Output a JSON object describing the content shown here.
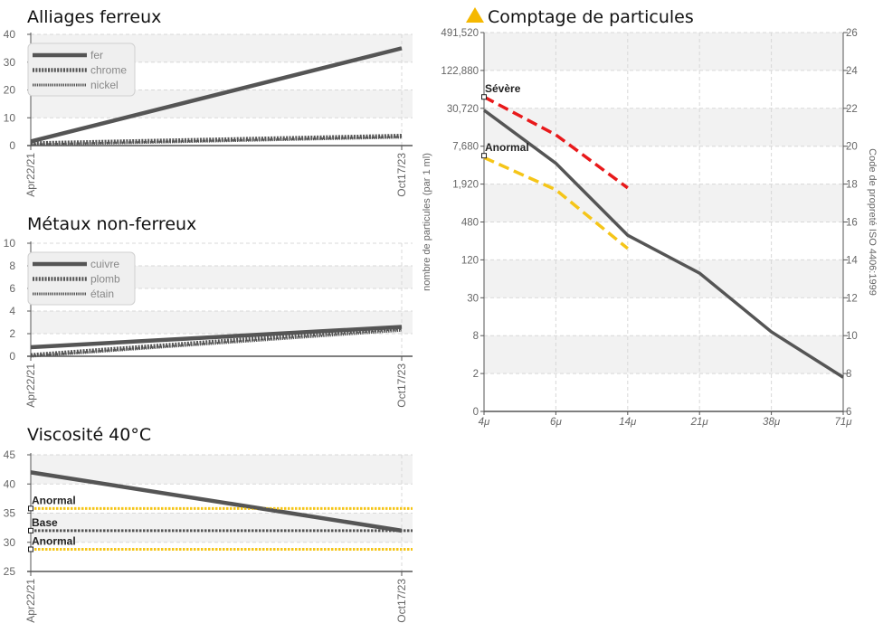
{
  "chart_data": [
    {
      "id": "ferreux",
      "type": "line",
      "title": "Alliages ferreux",
      "categories": [
        "Apr22/21",
        "Oct17/23"
      ],
      "ylim": [
        0,
        40
      ],
      "yticks": [
        0,
        10,
        20,
        30,
        40
      ],
      "series": [
        {
          "name": "fer",
          "values": [
            1.5,
            35
          ]
        },
        {
          "name": "chrome",
          "values": [
            0.8,
            3.5
          ]
        },
        {
          "name": "nickel",
          "values": [
            0.3,
            3.0
          ]
        }
      ],
      "legend": "top-left"
    },
    {
      "id": "nonferreux",
      "type": "line",
      "title": "Métaux non-ferreux",
      "categories": [
        "Apr22/21",
        "Oct17/23"
      ],
      "ylim": [
        0,
        10
      ],
      "yticks": [
        0,
        2,
        4,
        6,
        8,
        10
      ],
      "series": [
        {
          "name": "cuivre",
          "values": [
            0.8,
            2.6
          ]
        },
        {
          "name": "plomb",
          "values": [
            0.1,
            2.5
          ]
        },
        {
          "name": "étain",
          "values": [
            0.0,
            2.3
          ]
        }
      ],
      "legend": "top-left"
    },
    {
      "id": "viscosite",
      "type": "line",
      "title": "Viscosité 40°C",
      "categories": [
        "Apr22/21",
        "Oct17/23"
      ],
      "ylim": [
        25,
        45
      ],
      "yticks": [
        25,
        30,
        35,
        40,
        45
      ],
      "series": [
        {
          "name": "",
          "values": [
            42,
            32
          ]
        }
      ],
      "reference_lines": [
        {
          "label": "Anormal",
          "value": 35.8,
          "color": "#f5c518"
        },
        {
          "label": "Base",
          "value": 32,
          "color": "#555555"
        },
        {
          "label": "Anormal",
          "value": 28.8,
          "color": "#f5c518"
        }
      ]
    },
    {
      "id": "particules",
      "type": "line",
      "title": "Comptage de particules",
      "title_icon": "warning-triangle-icon",
      "categories": [
        "4μ",
        "6μ",
        "14μ",
        "21μ",
        "38μ",
        "71μ"
      ],
      "ylabel": "nombre de particules (par 1 ml)",
      "y2label": "Code de propreté ISO 4406:1999",
      "ytick_labels": [
        "0",
        "2",
        "8",
        "30",
        "120",
        "480",
        "1,920",
        "7,680",
        "30,720",
        "122,880",
        "491,520"
      ],
      "y2lim": [
        6,
        26
      ],
      "y2ticks": [
        6,
        8,
        10,
        12,
        14,
        16,
        18,
        20,
        22,
        24,
        26
      ],
      "series": [
        {
          "name": "",
          "color": "#555555",
          "iso_codes": [
            21.9,
            19.1,
            15.3,
            13.3,
            10.2,
            7.8
          ]
        },
        {
          "name": "Sévère",
          "color": "#e8191b",
          "iso_codes": [
            22.6,
            20.6,
            17.8
          ]
        },
        {
          "name": "Anormal",
          "color": "#f5c518",
          "iso_codes": [
            19.4,
            17.7,
            14.6
          ]
        }
      ],
      "markers": [
        {
          "label": "Sévère",
          "iso_code": 22.6
        },
        {
          "label": "Anormal",
          "iso_code": 19.5
        }
      ]
    }
  ]
}
